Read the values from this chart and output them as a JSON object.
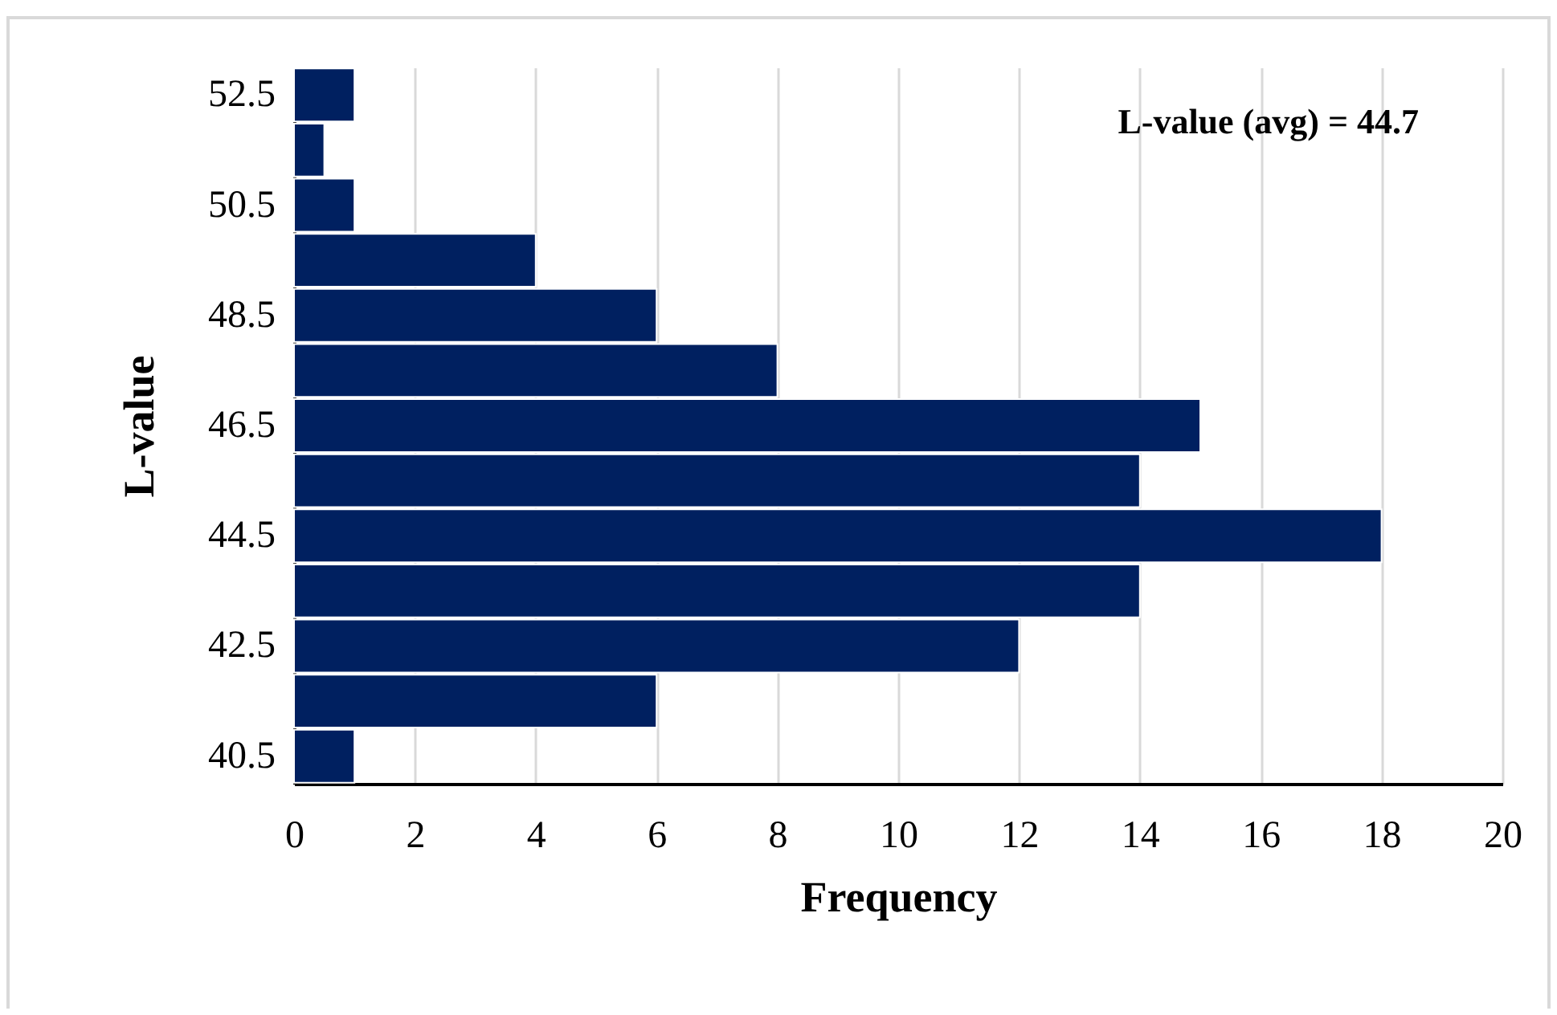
{
  "chart_data": {
    "type": "bar",
    "orientation": "horizontal",
    "xlabel": "Frequency",
    "ylabel": "L-value",
    "categories": [
      "52.5",
      null,
      "50.5",
      null,
      "48.5",
      null,
      "46.5",
      null,
      "44.5",
      null,
      "42.5",
      null,
      "40.5"
    ],
    "values": [
      1,
      0.5,
      1,
      4,
      6,
      8,
      15,
      14,
      18,
      14,
      12,
      6,
      1
    ],
    "color": "#002060",
    "xlim": [
      0,
      20
    ],
    "xticks": [
      0,
      2,
      4,
      6,
      8,
      10,
      12,
      14,
      16,
      18,
      20
    ],
    "grid": "x",
    "annotations": [
      "L-value (avg) = 44.7"
    ]
  }
}
